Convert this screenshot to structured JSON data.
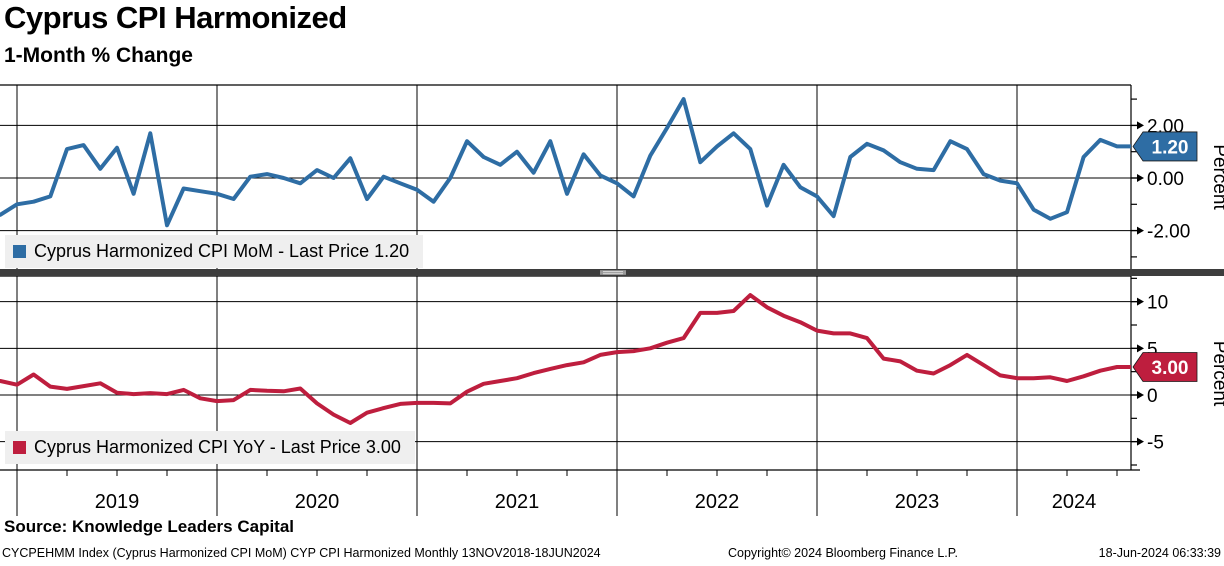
{
  "header": {
    "title": "Cyprus CPI Harmonized",
    "subtitle": "1-Month % Change"
  },
  "colors": {
    "mom_blue": "#2e6da4",
    "yoy_red": "#be1e3e",
    "grid": "#000000",
    "separator": "#3d3d3d",
    "separator_handle": "#9a9a9a",
    "legend_bg": "#efefef",
    "badge_text": "#ffffff"
  },
  "panels": [
    {
      "id": "mom",
      "legend": "Cyprus Harmonized CPI MoM - Last Price 1.20",
      "axis_title": "Percent",
      "badge": "1.20",
      "badge_value": 1.2,
      "major_tick_values": [
        2,
        0,
        -2
      ],
      "major_tick_labels": [
        "2.00",
        "0.00",
        "-2.00"
      ],
      "minor_tick_values": [
        3,
        1,
        -1,
        -3
      ]
    },
    {
      "id": "yoy",
      "legend": "Cyprus Harmonized CPI YoY - Last Price 3.00",
      "axis_title": "Percent",
      "badge": "3.00",
      "badge_value": 3.0,
      "major_tick_values": [
        10,
        5,
        0,
        -5
      ],
      "major_tick_labels": [
        "10",
        "5",
        "0",
        "-5"
      ],
      "minor_tick_values": [
        12.5,
        7.5,
        2.5,
        -2.5,
        -7.5
      ]
    }
  ],
  "x_axis": {
    "years": [
      "2019",
      "2020",
      "2021",
      "2022",
      "2023",
      "2024"
    ]
  },
  "footer": {
    "source": "Source: Knowledge Leaders Capital",
    "ticker_note": "CYCPEHMM Index (Cyprus Harmonized CPI MoM) CYP CPI Harmonized  Monthly 13NOV2018-18JUN2024",
    "copyright": "Copyright© 2024 Bloomberg Finance L.P.",
    "timestamp": "18-Jun-2024 06:33:39"
  },
  "chart_data": [
    {
      "type": "line",
      "title": "Cyprus Harmonized CPI MoM",
      "ylabel": "Percent",
      "ylim": [
        -3.5,
        3.5
      ],
      "yticks": [
        2,
        0,
        -2
      ],
      "legend_position": "bottom-left",
      "grid": true,
      "last_price": 1.2,
      "x": [
        "2018-11",
        "2018-12",
        "2019-01",
        "2019-02",
        "2019-03",
        "2019-04",
        "2019-05",
        "2019-06",
        "2019-07",
        "2019-08",
        "2019-09",
        "2019-10",
        "2019-11",
        "2019-12",
        "2020-01",
        "2020-02",
        "2020-03",
        "2020-04",
        "2020-05",
        "2020-06",
        "2020-07",
        "2020-08",
        "2020-09",
        "2020-10",
        "2020-11",
        "2020-12",
        "2021-01",
        "2021-02",
        "2021-03",
        "2021-04",
        "2021-05",
        "2021-06",
        "2021-07",
        "2021-08",
        "2021-09",
        "2021-10",
        "2021-11",
        "2021-12",
        "2022-01",
        "2022-02",
        "2022-03",
        "2022-04",
        "2022-05",
        "2022-06",
        "2022-07",
        "2022-08",
        "2022-09",
        "2022-10",
        "2022-11",
        "2022-12",
        "2023-01",
        "2023-02",
        "2023-03",
        "2023-04",
        "2023-05",
        "2023-06",
        "2023-07",
        "2023-08",
        "2023-09",
        "2023-10",
        "2023-11",
        "2023-12",
        "2024-01",
        "2024-02",
        "2024-03",
        "2024-04",
        "2024-05",
        "2024-06"
      ],
      "values": [
        -1.4,
        -1.0,
        -0.9,
        -0.7,
        1.1,
        1.25,
        0.35,
        1.15,
        -0.6,
        1.7,
        -1.8,
        -0.4,
        -0.5,
        -0.6,
        -0.8,
        0.05,
        0.15,
        0.0,
        -0.2,
        0.3,
        0.0,
        0.75,
        -0.8,
        0.05,
        -0.2,
        -0.45,
        -0.9,
        0.0,
        1.4,
        0.8,
        0.5,
        1.0,
        0.2,
        1.4,
        -0.6,
        0.9,
        0.1,
        -0.2,
        -0.7,
        0.85,
        1.9,
        3.0,
        0.6,
        1.2,
        1.7,
        1.1,
        -1.05,
        0.5,
        -0.35,
        -0.7,
        -1.45,
        0.8,
        1.3,
        1.05,
        0.6,
        0.35,
        0.3,
        1.4,
        1.1,
        0.15,
        -0.1,
        -0.2,
        -1.2,
        -1.55,
        -1.3,
        0.8,
        1.45,
        1.2
      ]
    },
    {
      "type": "line",
      "title": "Cyprus Harmonized CPI YoY",
      "ylabel": "Percent",
      "ylim": [
        -8,
        12.6
      ],
      "yticks": [
        10,
        5,
        0,
        -5
      ],
      "legend_position": "bottom-left",
      "grid": true,
      "last_price": 3.0,
      "x": [
        "2018-11",
        "2018-12",
        "2019-01",
        "2019-02",
        "2019-03",
        "2019-04",
        "2019-05",
        "2019-06",
        "2019-07",
        "2019-08",
        "2019-09",
        "2019-10",
        "2019-11",
        "2019-12",
        "2020-01",
        "2020-02",
        "2020-03",
        "2020-04",
        "2020-05",
        "2020-06",
        "2020-07",
        "2020-08",
        "2020-09",
        "2020-10",
        "2020-11",
        "2020-12",
        "2021-01",
        "2021-02",
        "2021-03",
        "2021-04",
        "2021-05",
        "2021-06",
        "2021-07",
        "2021-08",
        "2021-09",
        "2021-10",
        "2021-11",
        "2021-12",
        "2022-01",
        "2022-02",
        "2022-03",
        "2022-04",
        "2022-05",
        "2022-06",
        "2022-07",
        "2022-08",
        "2022-09",
        "2022-10",
        "2022-11",
        "2022-12",
        "2023-01",
        "2023-02",
        "2023-03",
        "2023-04",
        "2023-05",
        "2023-06",
        "2023-07",
        "2023-08",
        "2023-09",
        "2023-10",
        "2023-11",
        "2023-12",
        "2024-01",
        "2024-02",
        "2024-03",
        "2024-04",
        "2024-05",
        "2024-06"
      ],
      "values": [
        1.5,
        1.1,
        2.2,
        0.9,
        0.65,
        0.95,
        1.25,
        0.25,
        0.1,
        0.2,
        0.1,
        0.55,
        -0.35,
        -0.65,
        -0.55,
        0.55,
        0.45,
        0.4,
        0.7,
        -0.9,
        -2.1,
        -3.0,
        -1.9,
        -1.4,
        -0.95,
        -0.85,
        -0.85,
        -0.9,
        0.35,
        1.2,
        1.5,
        1.8,
        2.35,
        2.8,
        3.2,
        3.5,
        4.3,
        4.6,
        4.7,
        5.0,
        5.6,
        6.1,
        8.8,
        8.8,
        9.0,
        10.7,
        9.4,
        8.5,
        7.8,
        6.9,
        6.6,
        6.6,
        6.1,
        3.9,
        3.6,
        2.6,
        2.3,
        3.2,
        4.3,
        3.2,
        2.1,
        1.8,
        1.8,
        1.9,
        1.5,
        2.0,
        2.6,
        3.0
      ]
    }
  ]
}
